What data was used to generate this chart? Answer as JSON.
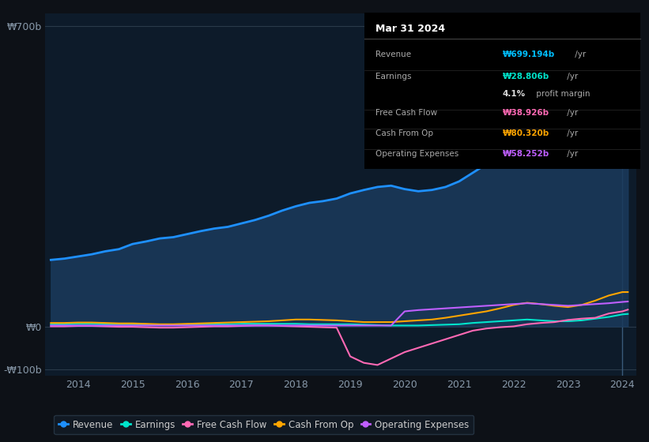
{
  "background_color": "#0d1117",
  "plot_bg_color": "#0d1b2a",
  "ylabel_700": "₩700b",
  "ylabel_0": "₩0",
  "ylabel_neg100": "-₩100b",
  "info_box": {
    "title": "Mar 31 2024",
    "rows": [
      {
        "label": "Revenue",
        "value": "₩699.194b",
        "suffix": " /yr",
        "value_color": "#00bfff"
      },
      {
        "label": "Earnings",
        "value": "₩28.806b",
        "suffix": " /yr",
        "value_color": "#00e5cc"
      },
      {
        "label": "",
        "value": "4.1%",
        "suffix": " profit margin",
        "value_color": "#ffffff"
      },
      {
        "label": "Free Cash Flow",
        "value": "₩38.926b",
        "suffix": " /yr",
        "value_color": "#ff69b4"
      },
      {
        "label": "Cash From Op",
        "value": "₩80.320b",
        "suffix": " /yr",
        "value_color": "#ffa500"
      },
      {
        "label": "Operating Expenses",
        "value": "₩58.252b",
        "suffix": " /yr",
        "value_color": "#bf5fff"
      }
    ]
  },
  "series": {
    "revenue": {
      "color": "#1e90ff",
      "fill_color": "#1a3a5c",
      "label": "Revenue",
      "x": [
        2013.5,
        2013.75,
        2014.0,
        2014.25,
        2014.5,
        2014.75,
        2015.0,
        2015.25,
        2015.5,
        2015.75,
        2016.0,
        2016.25,
        2016.5,
        2016.75,
        2017.0,
        2017.25,
        2017.5,
        2017.75,
        2018.0,
        2018.25,
        2018.5,
        2018.75,
        2019.0,
        2019.25,
        2019.5,
        2019.75,
        2020.0,
        2020.25,
        2020.5,
        2020.75,
        2021.0,
        2021.25,
        2021.5,
        2021.75,
        2022.0,
        2022.25,
        2022.5,
        2022.75,
        2023.0,
        2023.25,
        2023.5,
        2023.75,
        2024.0,
        2024.1
      ],
      "y": [
        155,
        158,
        163,
        168,
        175,
        180,
        192,
        198,
        205,
        208,
        215,
        222,
        228,
        232,
        240,
        248,
        258,
        270,
        280,
        288,
        292,
        298,
        310,
        318,
        325,
        328,
        320,
        315,
        318,
        325,
        338,
        358,
        378,
        390,
        395,
        400,
        390,
        385,
        395,
        430,
        480,
        560,
        650,
        699
      ]
    },
    "earnings": {
      "color": "#00e5cc",
      "label": "Earnings",
      "x": [
        2013.5,
        2013.75,
        2014.0,
        2014.25,
        2014.5,
        2014.75,
        2015.0,
        2015.25,
        2015.5,
        2015.75,
        2016.0,
        2016.25,
        2016.5,
        2016.75,
        2017.0,
        2017.25,
        2017.5,
        2017.75,
        2018.0,
        2018.25,
        2018.5,
        2018.75,
        2019.0,
        2019.25,
        2019.5,
        2019.75,
        2020.0,
        2020.25,
        2020.5,
        2020.75,
        2021.0,
        2021.25,
        2021.5,
        2021.75,
        2022.0,
        2022.25,
        2022.5,
        2022.75,
        2023.0,
        2023.25,
        2023.5,
        2023.75,
        2024.0,
        2024.1
      ],
      "y": [
        5,
        5,
        6,
        6,
        5,
        5,
        5,
        4,
        4,
        3,
        4,
        5,
        5,
        5,
        6,
        6,
        6,
        6,
        6,
        5,
        5,
        5,
        5,
        4,
        3,
        2,
        2,
        2,
        3,
        4,
        5,
        8,
        10,
        12,
        14,
        16,
        14,
        12,
        12,
        14,
        18,
        22,
        28,
        29
      ]
    },
    "free_cash_flow": {
      "color": "#ff69b4",
      "label": "Free Cash Flow",
      "x": [
        2013.5,
        2013.75,
        2014.0,
        2014.25,
        2014.5,
        2014.75,
        2015.0,
        2015.25,
        2015.5,
        2015.75,
        2016.0,
        2016.25,
        2016.5,
        2016.75,
        2017.0,
        2017.25,
        2017.5,
        2017.75,
        2018.0,
        2018.25,
        2018.5,
        2018.75,
        2019.0,
        2019.25,
        2019.5,
        2019.75,
        2020.0,
        2020.25,
        2020.5,
        2020.75,
        2021.0,
        2021.25,
        2021.5,
        2021.75,
        2022.0,
        2022.25,
        2022.5,
        2022.75,
        2023.0,
        2023.25,
        2023.5,
        2023.75,
        2024.0,
        2024.1
      ],
      "y": [
        0,
        0,
        1,
        1,
        0,
        -1,
        -1,
        -2,
        -3,
        -3,
        -2,
        -1,
        0,
        0,
        1,
        2,
        2,
        1,
        0,
        -1,
        -2,
        -3,
        -70,
        -85,
        -90,
        -75,
        -60,
        -50,
        -40,
        -30,
        -20,
        -10,
        -5,
        -2,
        0,
        5,
        8,
        10,
        15,
        18,
        20,
        30,
        35,
        39
      ]
    },
    "cash_from_op": {
      "color": "#ffa500",
      "label": "Cash From Op",
      "x": [
        2013.5,
        2013.75,
        2014.0,
        2014.25,
        2014.5,
        2014.75,
        2015.0,
        2015.25,
        2015.5,
        2015.75,
        2016.0,
        2016.25,
        2016.5,
        2016.75,
        2017.0,
        2017.25,
        2017.5,
        2017.75,
        2018.0,
        2018.25,
        2018.5,
        2018.75,
        2019.0,
        2019.25,
        2019.5,
        2019.75,
        2020.0,
        2020.25,
        2020.5,
        2020.75,
        2021.0,
        2021.25,
        2021.5,
        2021.75,
        2022.0,
        2022.25,
        2022.5,
        2022.75,
        2023.0,
        2023.25,
        2023.5,
        2023.75,
        2024.0,
        2024.1
      ],
      "y": [
        8,
        8,
        9,
        9,
        8,
        7,
        7,
        6,
        5,
        5,
        6,
        7,
        8,
        9,
        10,
        11,
        12,
        14,
        16,
        16,
        15,
        14,
        12,
        10,
        10,
        10,
        12,
        14,
        16,
        20,
        25,
        30,
        35,
        42,
        50,
        55,
        52,
        48,
        45,
        50,
        60,
        72,
        80,
        80
      ]
    },
    "operating_expenses": {
      "color": "#bf5fff",
      "label": "Operating Expenses",
      "x": [
        2013.5,
        2013.75,
        2014.0,
        2014.25,
        2014.5,
        2014.75,
        2015.0,
        2015.25,
        2015.5,
        2015.75,
        2016.0,
        2016.25,
        2016.5,
        2016.75,
        2017.0,
        2017.25,
        2017.5,
        2017.75,
        2018.0,
        2018.25,
        2018.5,
        2018.75,
        2019.0,
        2019.25,
        2019.5,
        2019.75,
        2020.0,
        2020.25,
        2020.5,
        2020.75,
        2021.0,
        2021.25,
        2021.5,
        2021.75,
        2022.0,
        2022.25,
        2022.5,
        2022.75,
        2023.0,
        2023.25,
        2023.5,
        2023.75,
        2024.0,
        2024.1
      ],
      "y": [
        2,
        2,
        2,
        2,
        2,
        2,
        2,
        2,
        2,
        2,
        2,
        2,
        2,
        2,
        2,
        2,
        2,
        2,
        2,
        2,
        2,
        2,
        2,
        2,
        2,
        2,
        35,
        38,
        40,
        42,
        44,
        46,
        48,
        50,
        52,
        54,
        52,
        50,
        48,
        50,
        52,
        54,
        57,
        58
      ]
    }
  },
  "ylim": [
    -115,
    730
  ],
  "xlim": [
    2013.4,
    2024.25
  ],
  "legend_items": [
    {
      "label": "Revenue",
      "color": "#1e90ff"
    },
    {
      "label": "Earnings",
      "color": "#00e5cc"
    },
    {
      "label": "Free Cash Flow",
      "color": "#ff69b4"
    },
    {
      "label": "Cash From Op",
      "color": "#ffa500"
    },
    {
      "label": "Operating Expenses",
      "color": "#bf5fff"
    }
  ]
}
